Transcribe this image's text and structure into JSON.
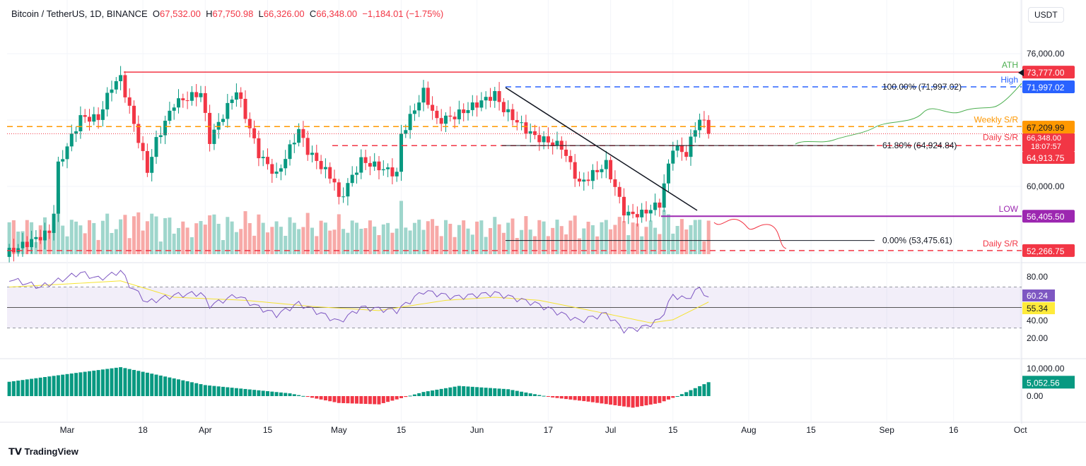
{
  "header": {
    "symbol": "Bitcoin / TetherUS, 1D, BINANCE",
    "open": "67,532.00",
    "high": "67,750.98",
    "low": "66,326.00",
    "close": "66,348.00",
    "change": "−1,184.01 (−1.75%)"
  },
  "currency": "USDT",
  "logo": "TradingView",
  "colors": {
    "up": "#089981",
    "down": "#f23645",
    "ath": "#f23645",
    "high": "#2962ff",
    "weekly": "#ff9800",
    "daily": "#f23645",
    "low": "#9c27b0",
    "rsi": "#7e57c2",
    "rsi_ma": "#ffeb3b"
  },
  "chart_data": [
    {
      "type": "candlestick",
      "pane": "price",
      "start": "2024-02-17",
      "end": "2024-07-23",
      "close_points": [
        [
          "2024-02-17",
          52100
        ],
        [
          "2024-02-26",
          54500
        ],
        [
          "2024-02-27",
          57000
        ],
        [
          "2024-02-28",
          62500
        ],
        [
          "2024-03-04",
          68300
        ],
        [
          "2024-03-08",
          68200
        ],
        [
          "2024-03-11",
          72100
        ],
        [
          "2024-03-13",
          73100
        ],
        [
          "2024-03-19",
          61900
        ],
        [
          "2024-03-21",
          65500
        ],
        [
          "2024-03-25",
          70000
        ],
        [
          "2024-03-31",
          71300
        ],
        [
          "2024-04-02",
          65600
        ],
        [
          "2024-04-08",
          71600
        ],
        [
          "2024-04-13",
          63900
        ],
        [
          "2024-04-17",
          61300
        ],
        [
          "2024-04-22",
          66800
        ],
        [
          "2024-04-24",
          64300
        ],
        [
          "2024-04-30",
          60600
        ],
        [
          "2024-05-01",
          58300
        ],
        [
          "2024-05-06",
          63100
        ],
        [
          "2024-05-14",
          61500
        ],
        [
          "2024-05-15",
          66200
        ],
        [
          "2024-05-20",
          71400
        ],
        [
          "2024-05-23",
          67900
        ],
        [
          "2024-05-27",
          68500
        ],
        [
          "2024-06-05",
          71100
        ],
        [
          "2024-06-07",
          69300
        ],
        [
          "2024-06-11",
          67300
        ],
        [
          "2024-06-14",
          66000
        ],
        [
          "2024-06-20",
          64800
        ],
        [
          "2024-06-24",
          60300
        ],
        [
          "2024-06-30",
          62700
        ],
        [
          "2024-07-04",
          57000
        ],
        [
          "2024-07-05",
          56600
        ],
        [
          "2024-07-08",
          56700
        ],
        [
          "2024-07-12",
          57900
        ],
        [
          "2024-07-15",
          64800
        ],
        [
          "2024-07-18",
          63900
        ],
        [
          "2024-07-20",
          67100
        ],
        [
          "2024-07-21",
          68100
        ],
        [
          "2024-07-22",
          67600
        ],
        [
          "2024-07-23",
          66348
        ]
      ],
      "y_ticks": [
        "76,000.00",
        "60,000.00"
      ],
      "ylim": [
        50000,
        79000
      ],
      "x_ticks": [
        "Mar",
        "18",
        "Apr",
        "15",
        "May",
        "15",
        "Jun",
        "17",
        "Jul",
        "15",
        "Aug",
        "15",
        "Sep",
        "16",
        "Oct"
      ],
      "levels": [
        {
          "label": "ATH",
          "value": 73777,
          "price_label": "73,777.00"
        },
        {
          "label": "High",
          "value": 71997.02,
          "price_label": "71,997.02"
        },
        {
          "label": "Weekly S/R",
          "value": 67209.99,
          "price_label": "67,209.99"
        },
        {
          "label": "Daily S/R",
          "value": 64913.75,
          "price_label": "64,913.75"
        },
        {
          "label": "LOW",
          "value": 56405.5,
          "price_label": "56,405.50"
        },
        {
          "label": "Daily S/R",
          "value": 52266.75,
          "price_label": "52,266.75"
        }
      ],
      "current_price": "66,348.00",
      "countdown": "18:07:57",
      "fib": [
        {
          "label": "100.00% (71,997.02)",
          "value": 71997.02
        },
        {
          "label": "61.80% (64,924.84)",
          "value": 64924.84
        },
        {
          "label": "0.00% (53,475.61)",
          "value": 53475.61
        }
      ]
    },
    {
      "type": "line",
      "pane": "rsi",
      "ylim": [
        20,
        90
      ],
      "y_ticks": [
        "80.00",
        "40.00",
        "20.00"
      ],
      "bands": [
        30,
        70
      ],
      "mid": 50,
      "rsi_points": [
        [
          "2024-02-17",
          78
        ],
        [
          "2024-02-24",
          70
        ],
        [
          "2024-03-04",
          84
        ],
        [
          "2024-03-08",
          78
        ],
        [
          "2024-03-11",
          82
        ],
        [
          "2024-03-13",
          86
        ],
        [
          "2024-03-15",
          72
        ],
        [
          "2024-03-19",
          55
        ],
        [
          "2024-03-25",
          62
        ],
        [
          "2024-03-31",
          64
        ],
        [
          "2024-04-02",
          52
        ],
        [
          "2024-04-08",
          62
        ],
        [
          "2024-04-13",
          50
        ],
        [
          "2024-04-17",
          43
        ],
        [
          "2024-04-22",
          54
        ],
        [
          "2024-05-01",
          36
        ],
        [
          "2024-05-06",
          50
        ],
        [
          "2024-05-14",
          47
        ],
        [
          "2024-05-20",
          66
        ],
        [
          "2024-05-27",
          60
        ],
        [
          "2024-06-05",
          64
        ],
        [
          "2024-06-14",
          54
        ],
        [
          "2024-06-24",
          37
        ],
        [
          "2024-06-30",
          44
        ],
        [
          "2024-07-04",
          28
        ],
        [
          "2024-07-08",
          30
        ],
        [
          "2024-07-12",
          38
        ],
        [
          "2024-07-15",
          62
        ],
        [
          "2024-07-18",
          58
        ],
        [
          "2024-07-21",
          69
        ],
        [
          "2024-07-23",
          60.24
        ]
      ],
      "ma_points": [
        [
          "2024-02-17",
          70
        ],
        [
          "2024-03-01",
          73
        ],
        [
          "2024-03-13",
          76
        ],
        [
          "2024-03-25",
          60
        ],
        [
          "2024-04-10",
          57
        ],
        [
          "2024-04-25",
          51
        ],
        [
          "2024-05-10",
          47
        ],
        [
          "2024-05-25",
          57
        ],
        [
          "2024-06-05",
          60
        ],
        [
          "2024-06-15",
          57
        ],
        [
          "2024-06-30",
          44
        ],
        [
          "2024-07-10",
          35
        ],
        [
          "2024-07-15",
          38
        ],
        [
          "2024-07-23",
          55.34
        ]
      ],
      "rsi_label": "60.24",
      "ma_label": "55.34"
    },
    {
      "type": "bar",
      "pane": "histogram",
      "ylim": [
        -4500,
        13000
      ],
      "y_ticks": [
        "10,000.00",
        "0.00"
      ],
      "points": [
        [
          "2024-02-17",
          5200
        ],
        [
          "2024-03-01",
          8000
        ],
        [
          "2024-03-13",
          10500
        ],
        [
          "2024-03-19",
          8500
        ],
        [
          "2024-04-01",
          4000
        ],
        [
          "2024-04-20",
          1000
        ],
        [
          "2024-05-01",
          -2500
        ],
        [
          "2024-05-10",
          -3000
        ],
        [
          "2024-05-20",
          1500
        ],
        [
          "2024-05-28",
          3700
        ],
        [
          "2024-06-08",
          2500
        ],
        [
          "2024-06-18",
          -500
        ],
        [
          "2024-06-26",
          -2000
        ],
        [
          "2024-07-06",
          -4200
        ],
        [
          "2024-07-12",
          -2500
        ],
        [
          "2024-07-16",
          0
        ],
        [
          "2024-07-23",
          5052.56
        ]
      ],
      "label": "5,052.56"
    }
  ]
}
